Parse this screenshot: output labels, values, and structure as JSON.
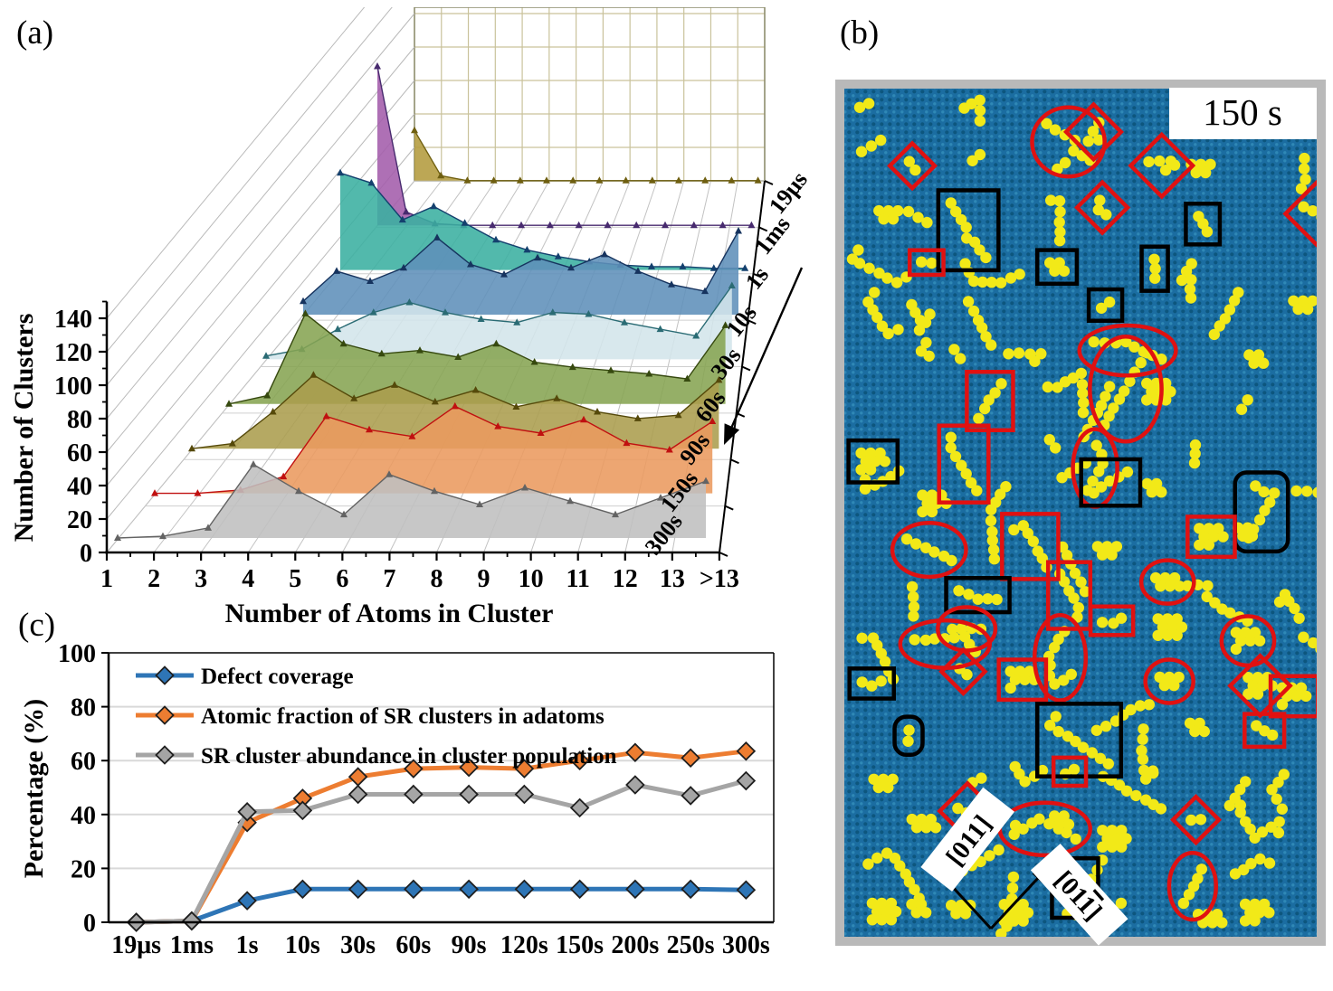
{
  "labels": {
    "a": "(a)",
    "b": "(b)",
    "c": "(c)"
  },
  "panel_a": {
    "ylabel": "Number of Clusters",
    "xlabel": "Number of Atoms in Cluster"
  },
  "panel_c": {
    "ylabel": "Percentage (%)"
  },
  "panel_b": {
    "time_label": "150 s",
    "direction_labels": [
      {
        "text": "[011]",
        "overbar_last_digit": false
      },
      {
        "text": "[011]",
        "overbar_last_digit": true
      }
    ],
    "background_color": "#1b6da1",
    "texture_dot_colors": [
      "#0d567e",
      "#2f88b6"
    ],
    "atom_color": "#f2e918",
    "annotation_red": "#e01111",
    "annotation_black": "#000000",
    "frame_color": "#b9b9b9",
    "approx_cluster_count": 110,
    "approx_red_annotations": 34,
    "approx_black_annotations": 20
  },
  "chart_data": [
    {
      "id": "cluster-size-distribution-3d",
      "type": "area",
      "projection": "3d-waterfall",
      "xlabel": "Number of Atoms in Cluster",
      "ylabel": "Number of Clusters",
      "categories": [
        "1",
        "2",
        "3",
        "4",
        "5",
        "6",
        "7",
        "8",
        "9",
        "10",
        "11",
        "12",
        "13",
        ">13"
      ],
      "ylim": [
        0,
        150
      ],
      "y_ticks": [
        0,
        20,
        40,
        60,
        80,
        100,
        120,
        140
      ],
      "depth_axis": "annealing time, back (19μs) to front (300s)",
      "series": [
        {
          "name": "19μs",
          "fill": "#b39b3d",
          "edge": "#6f5f10",
          "values": [
            30,
            3,
            0,
            0,
            0,
            0,
            0,
            0,
            0,
            0,
            0,
            0,
            0,
            0
          ]
        },
        {
          "name": "1ms",
          "fill": "#a35cab",
          "edge": "#472a6e",
          "values": [
            95,
            8,
            1,
            0,
            0,
            0,
            0,
            0,
            0,
            0,
            0,
            0,
            0,
            0
          ]
        },
        {
          "name": "1s",
          "fill": "#3aafa0",
          "edge": "#14406e",
          "values": [
            58,
            52,
            30,
            38,
            28,
            18,
            12,
            8,
            5,
            3,
            2,
            2,
            1,
            1
          ]
        },
        {
          "name": "10s",
          "fill": "#5e8fba",
          "edge": "#16335e",
          "values": [
            8,
            26,
            20,
            28,
            46,
            30,
            24,
            34,
            28,
            36,
            26,
            18,
            14,
            50
          ]
        },
        {
          "name": "30s",
          "fill": "#d3e5eb",
          "edge": "#2a6b74",
          "values": [
            2,
            6,
            18,
            28,
            34,
            28,
            24,
            22,
            28,
            27,
            22,
            18,
            14,
            44
          ]
        },
        {
          "name": "60s",
          "fill": "#86a452",
          "edge": "#36490f",
          "values": [
            0,
            5,
            54,
            36,
            30,
            32,
            28,
            36,
            25,
            22,
            20,
            18,
            15,
            47
          ]
        },
        {
          "name": "90s",
          "fill": "#ab9d4d",
          "edge": "#55490a",
          "values": [
            0,
            3,
            22,
            44,
            30,
            38,
            28,
            35,
            25,
            30,
            22,
            18,
            20,
            41
          ]
        },
        {
          "name": "150s",
          "fill": "#eb9a5f",
          "edge": "#c01010",
          "values": [
            0,
            0,
            2,
            10,
            46,
            38,
            34,
            52,
            40,
            36,
            44,
            30,
            26,
            43
          ]
        },
        {
          "name": "300s",
          "fill": "#bfbfbf",
          "edge": "#636363",
          "values": [
            0,
            1,
            6,
            44,
            28,
            14,
            38,
            28,
            20,
            30,
            22,
            14,
            24,
            34
          ]
        }
      ]
    },
    {
      "id": "percentage-vs-time",
      "type": "line",
      "ylabel": "Percentage (%)",
      "categories": [
        "19μs",
        "1ms",
        "1s",
        "10s",
        "30s",
        "60s",
        "90s",
        "120s",
        "150s",
        "200s",
        "250s",
        "300s"
      ],
      "ylim": [
        0,
        100
      ],
      "y_ticks": [
        0,
        20,
        40,
        60,
        80,
        100
      ],
      "grid": "horizontal",
      "legend_position": "inside top-left",
      "series": [
        {
          "name": "Defect coverage",
          "color": "#2E75B6",
          "marker": "diamond",
          "values": [
            0,
            0.5,
            8,
            12.3,
            12.3,
            12.3,
            12.3,
            12.3,
            12.3,
            12.3,
            12.3,
            12
          ]
        },
        {
          "name": "Atomic fraction of SR clusters in adatoms",
          "color": "#ED7D31",
          "marker": "diamond",
          "values": [
            0,
            0.5,
            37,
            46,
            54,
            57,
            57.5,
            57,
            60,
            63,
            61,
            63.5
          ]
        },
        {
          "name": "SR cluster abundance in cluster population",
          "color": "#A5A5A5",
          "marker": "diamond",
          "values": [
            0,
            0.5,
            41,
            41.5,
            47.5,
            47.5,
            47.5,
            47.5,
            42.5,
            51,
            47,
            52.5
          ]
        }
      ]
    }
  ]
}
